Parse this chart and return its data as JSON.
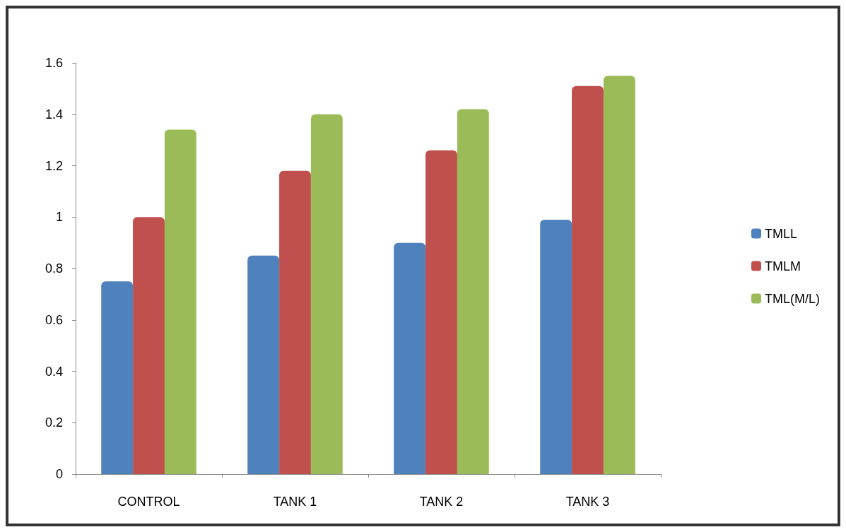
{
  "chart_data": {
    "type": "bar",
    "categories": [
      "CONTROL",
      "TANK 1",
      "TANK 2",
      "TANK 3"
    ],
    "series": [
      {
        "name": "TMLL",
        "color": "#4f81bd",
        "values": [
          0.75,
          0.85,
          0.9,
          0.99
        ]
      },
      {
        "name": "TMLM",
        "color": "#c0504d",
        "values": [
          1.0,
          1.18,
          1.26,
          1.51
        ]
      },
      {
        "name": "TML(M/L)",
        "color": "#9bbb59",
        "values": [
          1.34,
          1.4,
          1.42,
          1.55
        ]
      }
    ],
    "ylim": [
      0,
      1.6
    ],
    "yticks": [
      0,
      0.2,
      0.4,
      0.6,
      0.8,
      1,
      1.2,
      1.4,
      1.6
    ],
    "grid": false,
    "legend": "right"
  }
}
